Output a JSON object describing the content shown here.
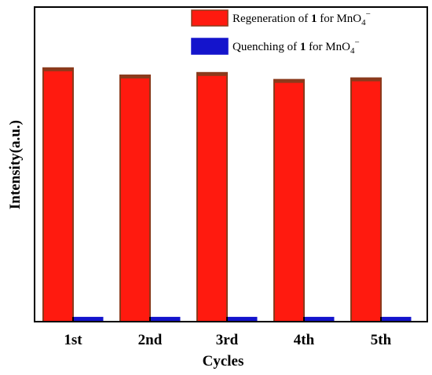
{
  "chart_data": {
    "type": "bar",
    "xlabel": "Cycles",
    "ylabel": "Intensity(a.u.)",
    "categories": [
      "1st",
      "2nd",
      "3rd",
      "4th",
      "5th"
    ],
    "ylim": [
      0,
      100
    ],
    "series": [
      {
        "name": "Regeneration of 1 for MnO4−",
        "legend": {
          "pre": "Regeneration of ",
          "bold": "1",
          "post": " for MnO",
          "sub": "4",
          "sup": "−"
        },
        "color": "#ff1a0f",
        "edge": "#8b3a1c",
        "values": [
          80.6,
          78.3,
          79.1,
          76.9,
          77.4
        ]
      },
      {
        "name": "Quenching of 1 for MnO4−",
        "legend": {
          "pre": "Quenching of ",
          "bold": "1",
          "post": " for MnO",
          "sub": "4",
          "sup": "−"
        },
        "color": "#1414cc",
        "edge": "#1414cc",
        "values": [
          1.4,
          1.4,
          1.4,
          1.4,
          1.4
        ]
      }
    ],
    "legend_position": "top-right",
    "grid": false
  }
}
